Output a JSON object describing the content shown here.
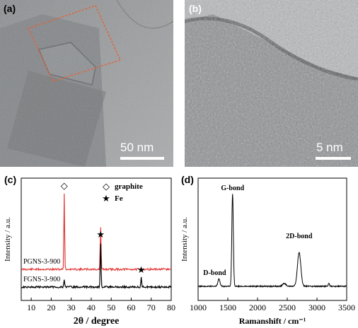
{
  "figure": {
    "panels": [
      {
        "label": "(a)",
        "scalebar": "50 nm"
      },
      {
        "label": "(b)",
        "scalebar": "5 nm"
      },
      {
        "label": "(c)"
      },
      {
        "label": "(d)"
      }
    ]
  },
  "chart_data": [
    {
      "type": "line",
      "xlabel": "2θ / degree",
      "ylabel": "Intensity / a.u.",
      "xlim": [
        5,
        80
      ],
      "xticks": [
        10,
        20,
        30,
        40,
        50,
        60,
        70,
        80
      ],
      "legend": {
        "placement": "top-right",
        "entries": [
          {
            "marker": "◇",
            "label": "graphite"
          },
          {
            "marker": "★",
            "label": "Fe"
          }
        ]
      },
      "series": [
        {
          "name": "PGNS-3-900",
          "color": "#e23b3b",
          "peaks": [
            {
              "x": 26.5,
              "marker": "◇"
            },
            {
              "x": 44.7
            }
          ]
        },
        {
          "name": "FGNS-3-900",
          "color": "#000000",
          "peaks": [
            {
              "x": 26.5
            },
            {
              "x": 44.7,
              "marker": "★"
            },
            {
              "x": 65.0,
              "marker": "★"
            }
          ]
        }
      ]
    },
    {
      "type": "line",
      "xlabel": "Ramanshift / cm⁻¹",
      "ylabel": "Intensity / a.u.",
      "xlim": [
        1000,
        3500
      ],
      "xticks": [
        1000,
        1500,
        2000,
        2500,
        3000,
        3500
      ],
      "annotations": [
        {
          "text": "D-bond",
          "x": 1350
        },
        {
          "text": "G-bond",
          "x": 1580
        },
        {
          "text": "2D-bond",
          "x": 2700
        }
      ]
    }
  ]
}
